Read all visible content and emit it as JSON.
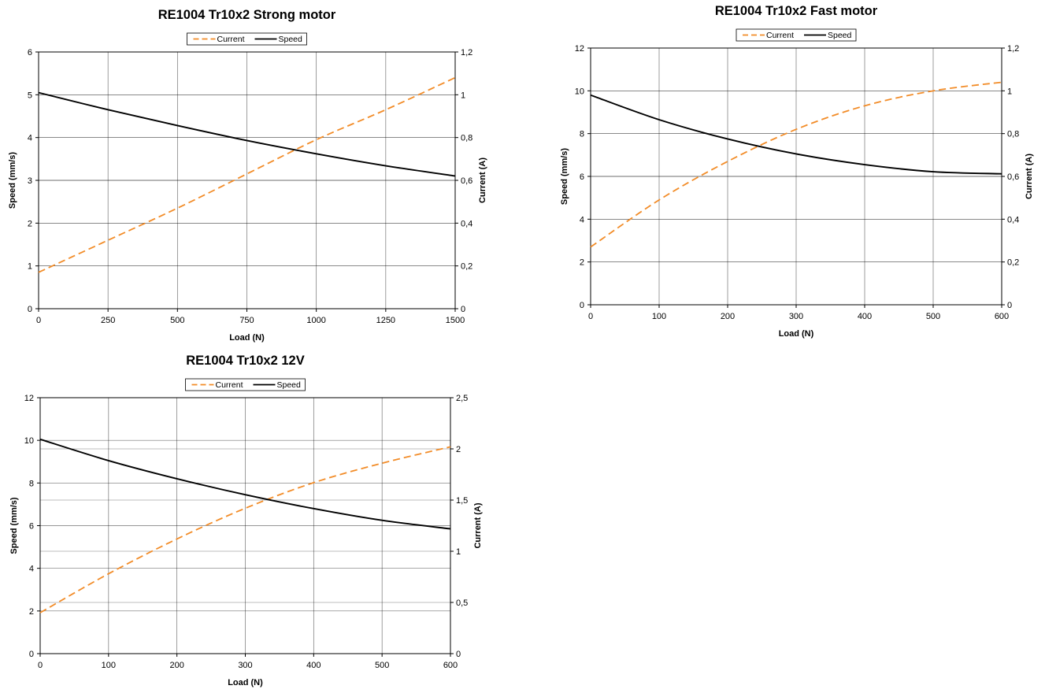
{
  "chart_data": [
    {
      "type": "line",
      "title": "RE1004 Tr10x2 Strong motor",
      "xlabel": "Load (N)",
      "ylabel": "Speed (mm/s)",
      "y2label": "Current (A)",
      "xlim": [
        0,
        1500
      ],
      "ylim": [
        0,
        6
      ],
      "y2lim": [
        0,
        1.2
      ],
      "xticks": [
        "0",
        "250",
        "500",
        "750",
        "1000",
        "1250",
        "1500"
      ],
      "yticks": [
        "0",
        "1",
        "2",
        "3",
        "4",
        "5",
        "6"
      ],
      "y2ticks": [
        "0",
        "0,2",
        "0,4",
        "0,6",
        "0,8",
        "1",
        "1,2"
      ],
      "legend_position": "top-center",
      "grid": true,
      "series": [
        {
          "name": "Current",
          "axis": "right",
          "color": "#F28C28",
          "dash": true,
          "x": [
            0,
            250,
            500,
            750,
            1000,
            1250,
            1500
          ],
          "values": [
            0.17,
            0.32,
            0.47,
            0.63,
            0.79,
            0.93,
            1.08
          ]
        },
        {
          "name": "Speed",
          "axis": "left",
          "color": "#000000",
          "dash": false,
          "x": [
            0,
            250,
            500,
            750,
            1000,
            1250,
            1500
          ],
          "values": [
            5.05,
            4.65,
            4.28,
            3.93,
            3.62,
            3.34,
            3.1
          ]
        }
      ]
    },
    {
      "type": "line",
      "title": "RE1004 Tr10x2 Fast motor",
      "xlabel": "Load (N)",
      "ylabel": "Speed (mm/s)",
      "y2label": "Current (A)",
      "xlim": [
        0,
        600
      ],
      "ylim": [
        0,
        12
      ],
      "y2lim": [
        0,
        1.2
      ],
      "xticks": [
        "0",
        "100",
        "200",
        "300",
        "400",
        "500",
        "600"
      ],
      "yticks": [
        "0",
        "2",
        "4",
        "6",
        "8",
        "10",
        "12"
      ],
      "y2ticks": [
        "0",
        "0,2",
        "0,4",
        "0,6",
        "0,8",
        "1",
        "1,2"
      ],
      "legend_position": "top-center",
      "grid": true,
      "series": [
        {
          "name": "Current",
          "axis": "right",
          "color": "#F28C28",
          "dash": true,
          "x": [
            0,
            100,
            200,
            300,
            400,
            500,
            600
          ],
          "values": [
            0.27,
            0.49,
            0.67,
            0.82,
            0.93,
            1.0,
            1.04
          ]
        },
        {
          "name": "Speed",
          "axis": "left",
          "color": "#000000",
          "dash": false,
          "x": [
            0,
            100,
            200,
            300,
            400,
            500,
            600
          ],
          "values": [
            9.8,
            8.65,
            7.75,
            7.05,
            6.55,
            6.22,
            6.12
          ]
        }
      ]
    },
    {
      "type": "line",
      "title": "RE1004 Tr10x2  12V",
      "xlabel": "Load (N)",
      "ylabel": "Speed (mm/s)",
      "y2label": "Current (A)",
      "xlim": [
        0,
        600
      ],
      "ylim": [
        0,
        12
      ],
      "y2lim": [
        0,
        2.5
      ],
      "xticks": [
        "0",
        "100",
        "200",
        "300",
        "400",
        "500",
        "600"
      ],
      "yticks": [
        "0",
        "2",
        "4",
        "6",
        "8",
        "10",
        "12"
      ],
      "y2ticks": [
        "0",
        "0,5",
        "1",
        "1,5",
        "2",
        "2,5"
      ],
      "legend_position": "top-center",
      "grid": true,
      "series": [
        {
          "name": "Current",
          "axis": "right",
          "color": "#F28C28",
          "dash": true,
          "x": [
            0,
            100,
            200,
            300,
            400,
            500,
            600
          ],
          "values": [
            0.4,
            0.78,
            1.12,
            1.42,
            1.67,
            1.86,
            2.02
          ]
        },
        {
          "name": "Speed",
          "axis": "left",
          "color": "#000000",
          "dash": false,
          "x": [
            0,
            100,
            200,
            300,
            400,
            500,
            600
          ],
          "values": [
            10.05,
            9.05,
            8.2,
            7.45,
            6.8,
            6.25,
            5.85
          ]
        }
      ]
    }
  ]
}
